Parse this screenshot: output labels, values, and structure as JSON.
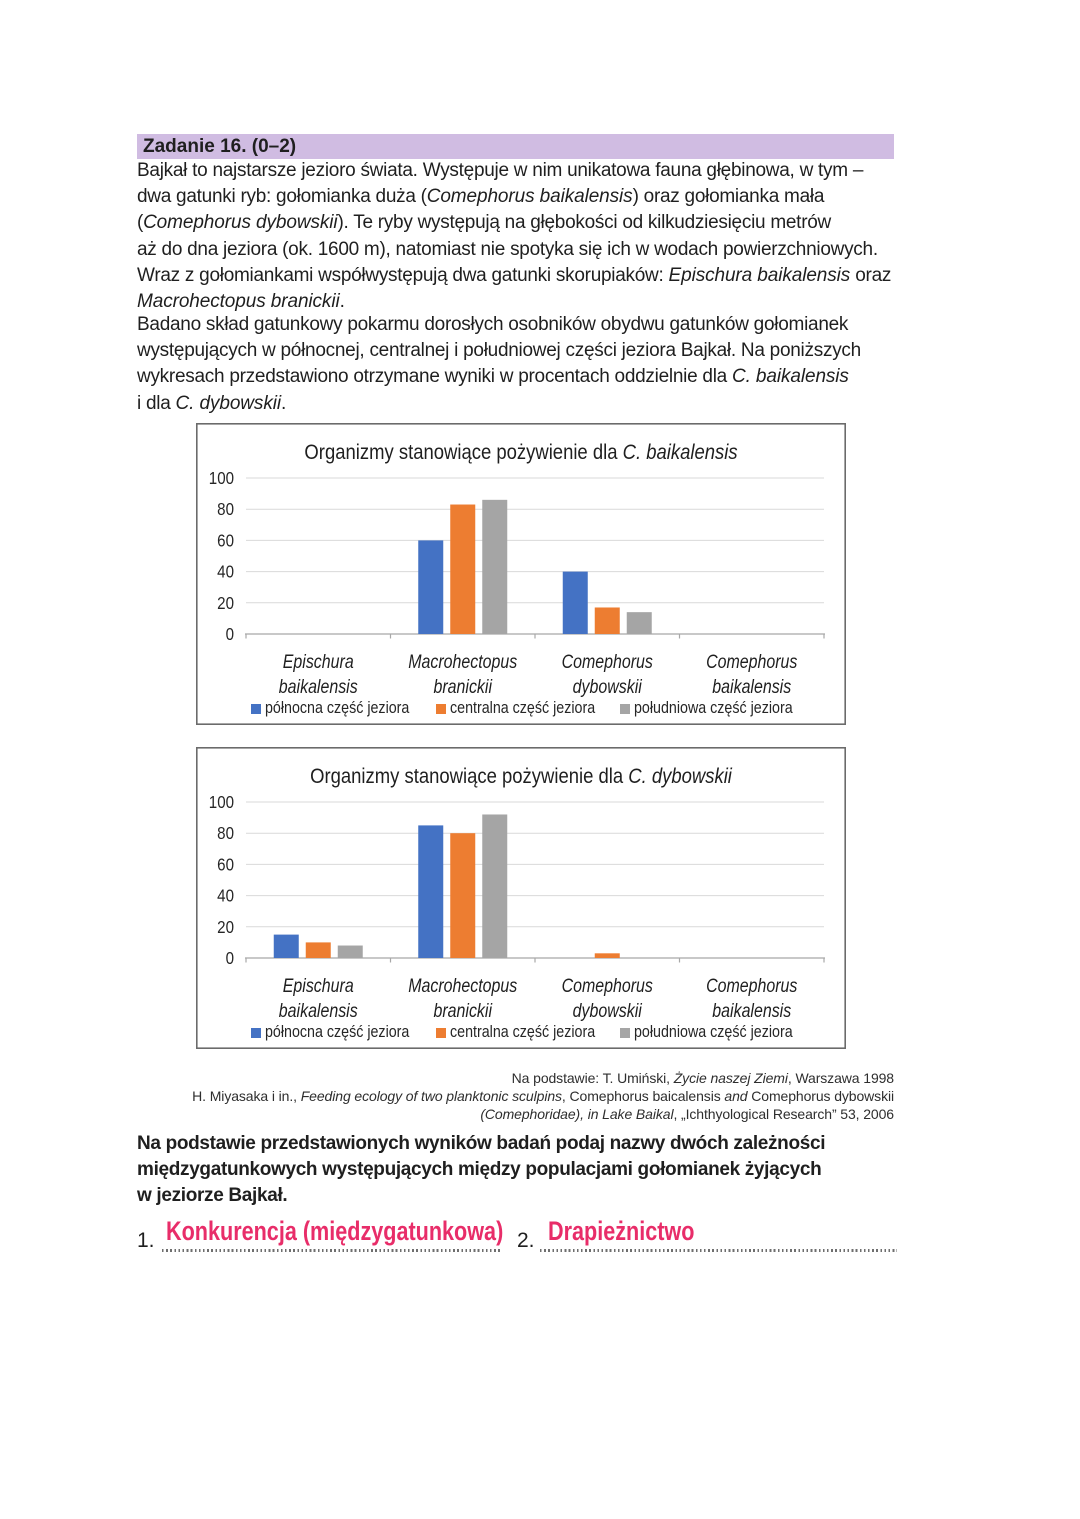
{
  "header": {
    "label": "Zadanie 16. (0–2)",
    "background": "#d0bce2"
  },
  "intro": {
    "paragraph1": [
      {
        "text": "Bajkał to najstarsze jezioro świata. Występuje w nim unikatowa fauna głębinowa, w tym –\ndwa gatunki ryb: gołomianka duża ("
      },
      {
        "text": "Comephorus baikalensis",
        "italic": true
      },
      {
        "text": ") oraz gołomianka mała\n("
      },
      {
        "text": "Comephorus dybowskii",
        "italic": true
      },
      {
        "text": "). Te ryby występują na głębokości od kilkudziesięciu metrów\naż do dna jeziora (ok. 1600 m), natomiast nie spotyka się ich w wodach powierzchniowych.\nWraz z gołomiankami współwystępują dwa gatunki skorupiaków: "
      },
      {
        "text": "Epischura baikalensis",
        "italic": true
      },
      {
        "text": " oraz\n"
      },
      {
        "text": "Macrohectopus branickii",
        "italic": true
      },
      {
        "text": "."
      }
    ],
    "paragraph2": [
      {
        "text": "Badano skład gatunkowy pokarmu dorosłych osobników obydwu gatunków gołomianek\nwystępujących w północnej, centralnej i południowej części jeziora Bajkał. Na poniższych\nwykresach przedstawiono otrzymane wyniki w procentach oddzielnie dla "
      },
      {
        "text": "C. baikalensis",
        "italic": true
      },
      {
        "text": "\ni dla "
      },
      {
        "text": "C. dybowskii",
        "italic": true
      },
      {
        "text": "."
      }
    ]
  },
  "chart_data": [
    {
      "type": "bar",
      "title": [
        {
          "text": "Organizmy stanowiące pożywienie dla "
        },
        {
          "text": "C. baikalensis",
          "italic": true
        }
      ],
      "categories": [
        [
          "Epischura",
          "baikalensis"
        ],
        [
          "Macrohectopus",
          "branickii"
        ],
        [
          "Comephorus",
          "dybowskii"
        ],
        [
          "Comephorus",
          "baikalensis"
        ]
      ],
      "series": [
        {
          "name": "północna część jeziora",
          "color": "#4472c4",
          "values": [
            0,
            60,
            40,
            0
          ]
        },
        {
          "name": "centralna część jeziora",
          "color": "#ed7d31",
          "values": [
            0,
            83,
            17,
            0
          ]
        },
        {
          "name": "południowa część jeziora",
          "color": "#a5a5a5",
          "values": [
            0,
            86,
            14,
            0
          ]
        }
      ],
      "ylim": [
        0,
        100
      ],
      "yticks": [
        0,
        20,
        40,
        60,
        80,
        100
      ],
      "grid": true,
      "legend_position": "bottom",
      "ylabel": "",
      "xlabel": ""
    },
    {
      "type": "bar",
      "title": [
        {
          "text": "Organizmy stanowiące pożywienie dla "
        },
        {
          "text": "C. dybowskii",
          "italic": true
        }
      ],
      "categories": [
        [
          "Epischura",
          "baikalensis"
        ],
        [
          "Macrohectopus",
          "branickii"
        ],
        [
          "Comephorus",
          "dybowskii"
        ],
        [
          "Comephorus",
          "baikalensis"
        ]
      ],
      "series": [
        {
          "name": "północna część jeziora",
          "color": "#4472c4",
          "values": [
            15,
            85,
            0,
            0
          ]
        },
        {
          "name": "centralna część jeziora",
          "color": "#ed7d31",
          "values": [
            10,
            80,
            3,
            0
          ]
        },
        {
          "name": "południowa część jeziora",
          "color": "#a5a5a5",
          "values": [
            8,
            92,
            0,
            0
          ]
        }
      ],
      "ylim": [
        0,
        100
      ],
      "yticks": [
        0,
        20,
        40,
        60,
        80,
        100
      ],
      "grid": true,
      "legend_position": "bottom",
      "ylabel": "",
      "xlabel": ""
    }
  ],
  "citation": {
    "line1": [
      {
        "text": "Na podstawie: T. Umiński, "
      },
      {
        "text": "Życie naszej Ziemi",
        "italic": true
      },
      {
        "text": ", Warszawa 1998"
      }
    ],
    "line2": [
      {
        "text": "H. Miyasaka i in., "
      },
      {
        "text": "Feeding ecology of two planktonic sculpins",
        "italic": true
      },
      {
        "text": ", Comephorus baicalensis "
      },
      {
        "text": "and",
        "italic": true
      },
      {
        "text": " Comephorus dybowskii"
      }
    ],
    "line3": [
      {
        "text": "(Comephoridae), in Lake Baikal",
        "italic": true
      },
      {
        "text": ", „Ichthyological Research” 53, 2006"
      }
    ]
  },
  "question": {
    "text": "Na podstawie przedstawionych wyników badań podaj nazwy dwóch zależności\nmiędzygatunkowych występujących między populacjami gołomianek żyjących\nw jeziorze Bajkał."
  },
  "answers": {
    "number1": "1.",
    "answer1": "Konkurencja (międzygatunkowa)",
    "number2": "2.",
    "answer2": "Drapieżnictwo",
    "ink_color": "#e82d69"
  }
}
